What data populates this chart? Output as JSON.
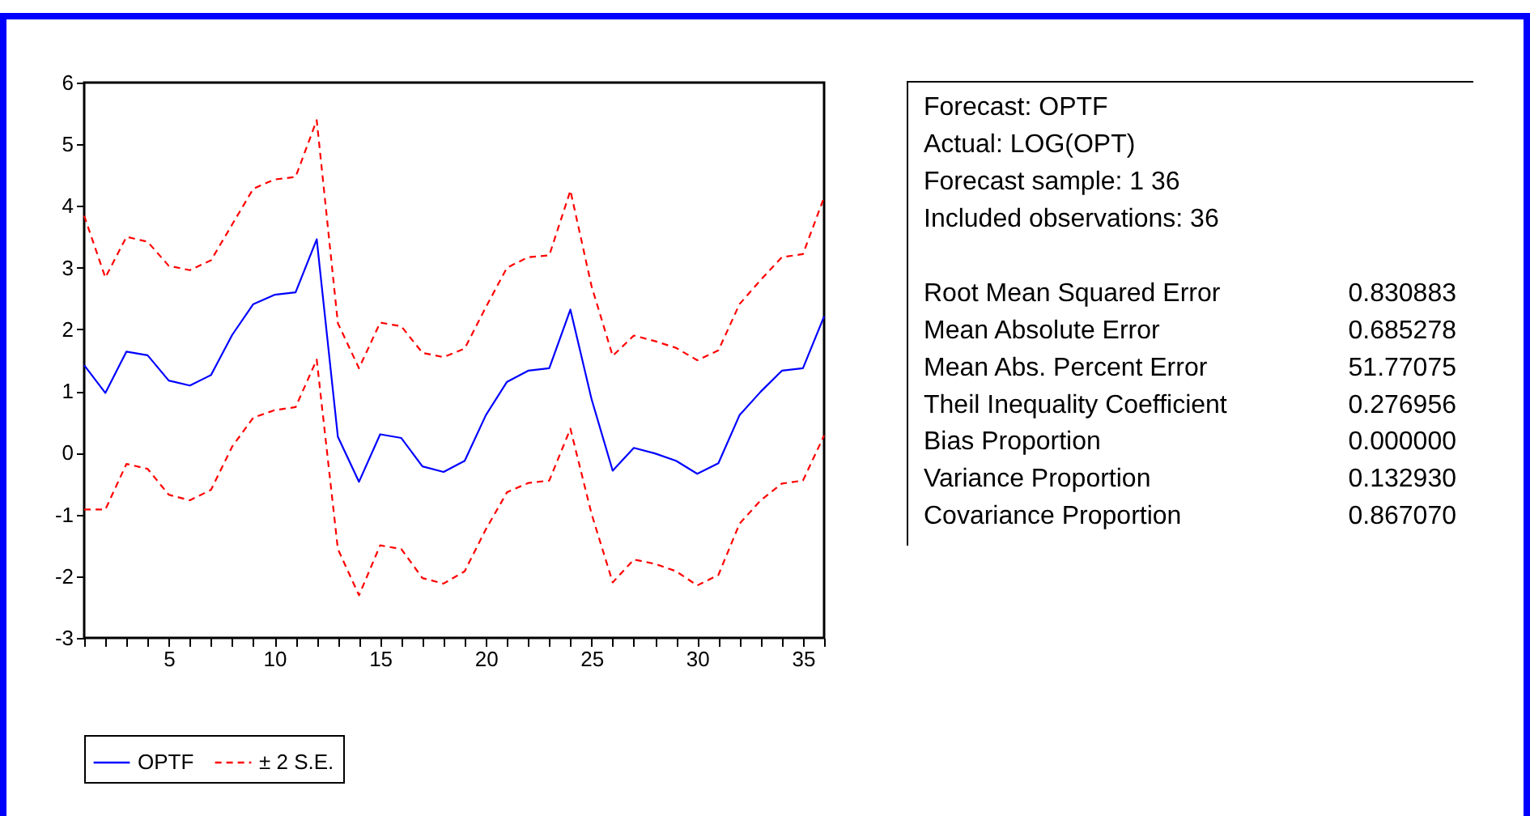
{
  "chart_data": [
    {
      "type": "line",
      "x": [
        1,
        2,
        3,
        4,
        5,
        6,
        7,
        8,
        9,
        10,
        11,
        12,
        13,
        14,
        15,
        16,
        17,
        18,
        19,
        20,
        21,
        22,
        23,
        24,
        25,
        26,
        27,
        28,
        29,
        30,
        31,
        32,
        33,
        34,
        35,
        36
      ],
      "series": [
        {
          "name": "OPTF",
          "color": "#0000ff",
          "line_style": "solid",
          "values": [
            1.42,
            0.97,
            1.64,
            1.58,
            1.17,
            1.09,
            1.26,
            1.91,
            2.41,
            2.56,
            2.6,
            3.46,
            0.26,
            -0.47,
            0.3,
            0.24,
            -0.22,
            -0.31,
            -0.13,
            0.61,
            1.15,
            1.33,
            1.37,
            2.32,
            0.87,
            -0.29,
            0.08,
            -0.01,
            -0.13,
            -0.34,
            -0.17,
            0.61,
            0.99,
            1.33,
            1.37,
            2.21
          ]
        },
        {
          "name": "± 2 S.E.",
          "color": "#ff0000",
          "line_style": "dashed",
          "values": [
            3.84,
            2.84,
            3.5,
            3.42,
            3.03,
            2.96,
            3.12,
            3.7,
            4.28,
            4.43,
            4.47,
            5.39,
            2.1,
            1.37,
            2.11,
            2.05,
            1.62,
            1.55,
            1.69,
            2.36,
            3.0,
            3.17,
            3.2,
            4.25,
            2.7,
            1.57,
            1.9,
            1.81,
            1.7,
            1.5,
            1.66,
            2.41,
            2.8,
            3.17,
            3.22,
            4.14
          ]
        },
        {
          "color": "#ff0000",
          "line_style": "dashed",
          "values": [
            -0.92,
            -0.92,
            -0.18,
            -0.26,
            -0.68,
            -0.77,
            -0.6,
            0.1,
            0.57,
            0.69,
            0.74,
            1.51,
            -1.56,
            -2.31,
            -1.5,
            -1.56,
            -2.03,
            -2.12,
            -1.92,
            -1.24,
            -0.64,
            -0.49,
            -0.45,
            0.39,
            -0.99,
            -2.1,
            -1.73,
            -1.8,
            -1.92,
            -2.15,
            -1.98,
            -1.15,
            -0.77,
            -0.5,
            -0.45,
            0.28
          ]
        }
      ],
      "xlim": [
        1,
        36
      ],
      "xticks": [
        {
          "value": 1,
          "label": null
        },
        {
          "value": 2,
          "label": null
        },
        {
          "value": 3,
          "label": null
        },
        {
          "value": 4,
          "label": null
        },
        5,
        {
          "value": 6,
          "label": null
        },
        {
          "value": 7,
          "label": null
        },
        {
          "value": 8,
          "label": null
        },
        {
          "value": 9,
          "label": null
        },
        10,
        {
          "value": 11,
          "label": null
        },
        {
          "value": 12,
          "label": null
        },
        {
          "value": 13,
          "label": null
        },
        {
          "value": 14,
          "label": null
        },
        15,
        {
          "value": 16,
          "label": null
        },
        {
          "value": 17,
          "label": null
        },
        {
          "value": 18,
          "label": null
        },
        {
          "value": 19,
          "label": null
        },
        20,
        {
          "value": 21,
          "label": null
        },
        {
          "value": 22,
          "label": null
        },
        {
          "value": 23,
          "label": null
        },
        {
          "value": 24,
          "label": null
        },
        25,
        {
          "value": 26,
          "label": null
        },
        {
          "value": 27,
          "label": null
        },
        {
          "value": 28,
          "label": null
        },
        {
          "value": 29,
          "label": null
        },
        30,
        {
          "value": 31,
          "label": null
        },
        {
          "value": 32,
          "label": null
        },
        {
          "value": 33,
          "label": null
        },
        {
          "value": 34,
          "label": null
        },
        35,
        {
          "value": 36,
          "label": null
        }
      ],
      "ylim": [
        -3,
        6
      ],
      "yticks": [
        -3,
        -2,
        -1,
        0,
        1,
        2,
        3,
        4,
        5,
        6
      ],
      "grid": false,
      "legend": "bottom",
      "marker": "none"
    },
    {
      "type": "other",
      "annotations": [
        "Forecast: OPTF",
        "Actual: LOG(OPT)",
        "Forecast sample: 1 36",
        "Included observations: 36"
      ],
      "categories": [
        "Root Mean Squared Error",
        "Mean Absolute Error",
        "Mean Abs. Percent Error",
        "Theil Inequality Coefficient",
        "Bias Proportion",
        "Variance Proportion",
        "Covariance Proportion"
      ],
      "values": [
        0.830883,
        0.685278,
        51.77075,
        0.276956,
        0.0,
        0.13293,
        0.86707
      ],
      "value_labels": [
        "0.830883",
        "0.685278",
        "51.77075",
        "0.276956",
        "0.000000",
        "0.132930",
        "0.867070"
      ]
    }
  ]
}
